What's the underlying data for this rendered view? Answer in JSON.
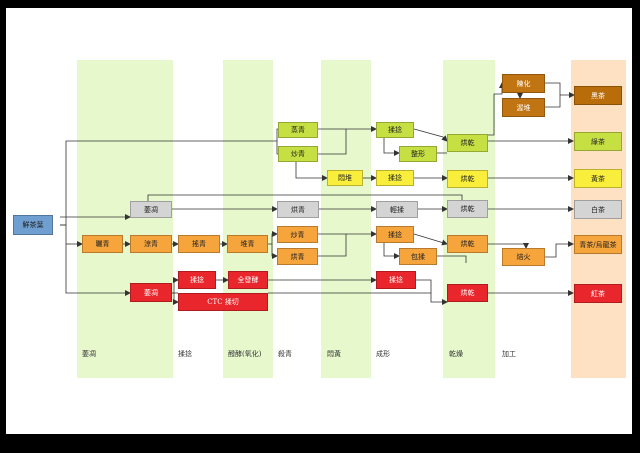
{
  "colors": {
    "band": "#e6f8cc",
    "final_band": "#fde1c2",
    "blue": "#6f9fd0",
    "lime": "#c6e043",
    "yellow": "#f8ee3b",
    "gray": "#d4d4d4",
    "orange": "#f6a43c",
    "red": "#e8262b",
    "brown": "#c07412",
    "black_tea_dark": "#b86d0a"
  },
  "start": "鮮茶葉",
  "stages": {
    "s1": "萎凋",
    "s2": "揉捻",
    "s3": "醱酵(氧化)",
    "s4": "殺青",
    "s5": "悶黃",
    "s6": "成形",
    "s7": "乾燥",
    "s8": "加工"
  },
  "steps": {
    "steamed_green": "蒸青",
    "pan_green": "炒青",
    "roll_green": "揉捻",
    "shaping": "整形",
    "dry_green": "烘乾",
    "stack_aging": "陳化",
    "pile_ferment": "渥堆",
    "yellowing": "悶堆",
    "roll_yellow": "揉捻",
    "dry_yellow": "烘乾",
    "white_wither": "萎凋",
    "white_bake": "烘青",
    "white_light": "輕揉",
    "white_dry": "烘乾",
    "sun_wither": "曬青",
    "cool_wither": "涼青",
    "toss_green": "搖青",
    "heap_green": "堆青",
    "oolong_pan": "炒青",
    "oolong_bake": "烘青",
    "oolong_roll": "揉捻",
    "ball_roll": "包揉",
    "oolong_dry": "烘乾",
    "roasting": "焙火",
    "black_wither": "萎凋",
    "black_roll": "揉捻",
    "full_ferment": "全發酵",
    "ctc": "CTC 揉切",
    "black_roll2": "揉捻",
    "black_dry": "烘乾"
  },
  "products": {
    "dark": "黑茶",
    "green": "綠茶",
    "yellow": "黃茶",
    "white": "白茶",
    "oolong": "青茶/烏龍茶",
    "black": "紅茶"
  }
}
